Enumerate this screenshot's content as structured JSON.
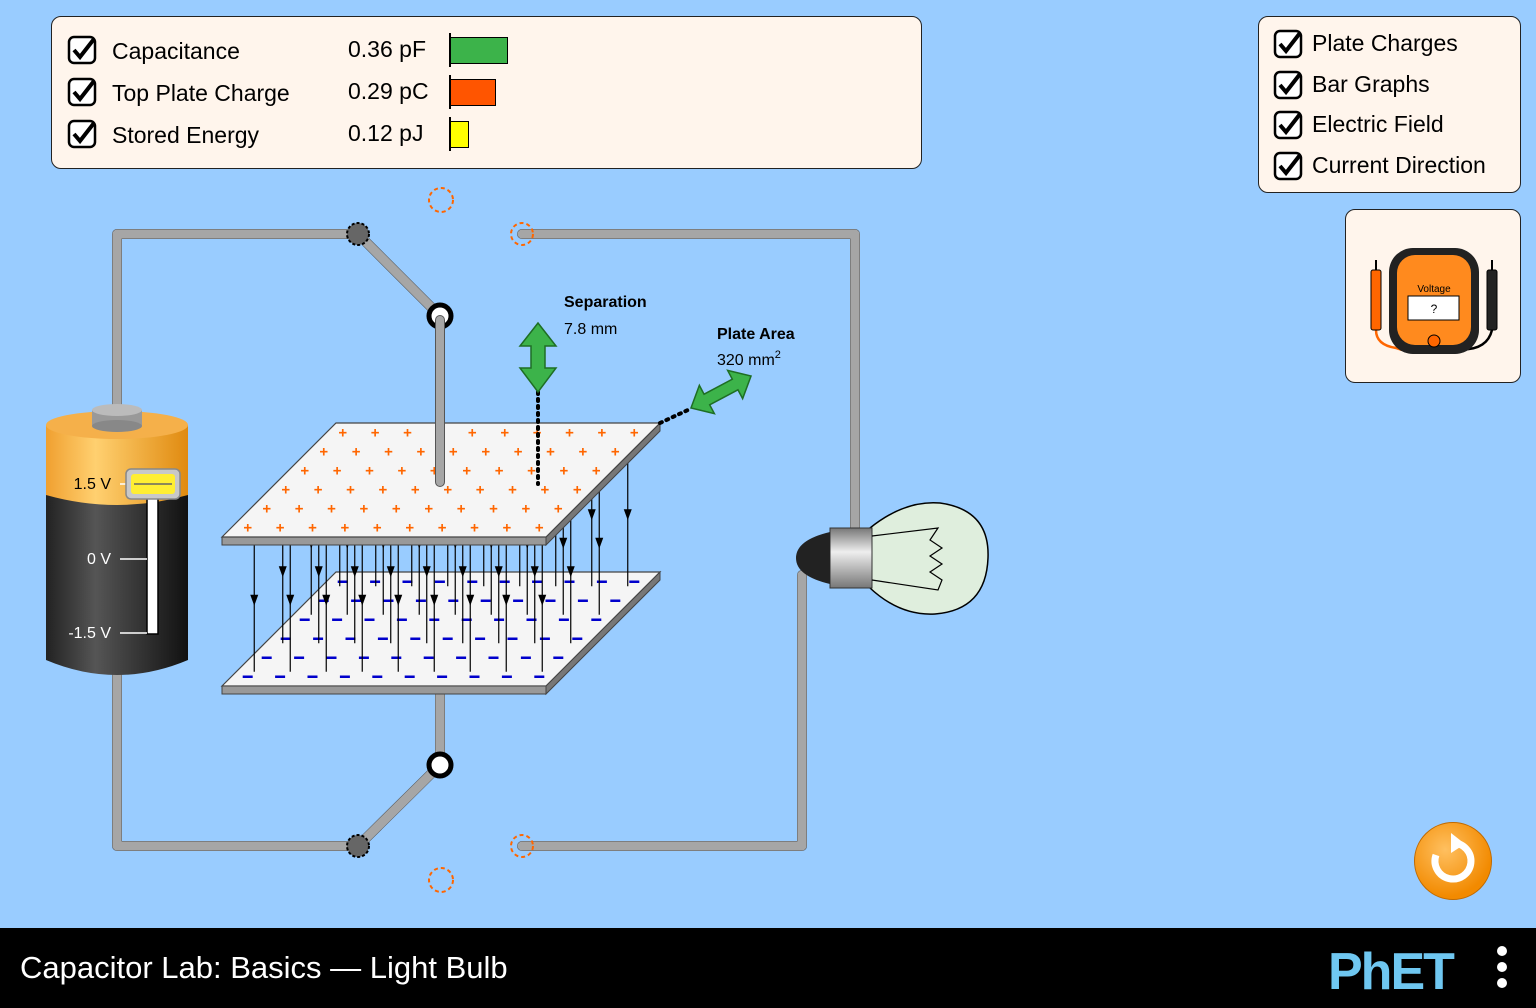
{
  "meters_panel": {
    "rows": [
      {
        "label": "Capacitance",
        "value": "0.36 pF",
        "checked": true,
        "color": "#3cb34a",
        "fraction": 0.36
      },
      {
        "label": "Top Plate Charge",
        "value": "0.29 pC",
        "checked": true,
        "color": "#ff5500",
        "fraction": 0.29
      },
      {
        "label": "Stored Energy",
        "value": "0.12 pJ",
        "checked": true,
        "color": "#ffff00",
        "fraction": 0.12
      }
    ]
  },
  "view_panel": {
    "options": [
      {
        "label": "Plate Charges",
        "checked": true
      },
      {
        "label": "Bar Graphs",
        "checked": true
      },
      {
        "label": "Electric Field",
        "checked": true
      },
      {
        "label": "Current Direction",
        "checked": true
      }
    ]
  },
  "voltmeter": {
    "title": "Voltage",
    "reading": "?",
    "icon": "voltmeter-icon"
  },
  "battery": {
    "top_label": "1.5 V",
    "mid_label": "0 V",
    "bottom_label": "-1.5 V",
    "voltage_fraction": 1.0
  },
  "separation": {
    "title": "Separation",
    "value": "7.8 mm"
  },
  "plate_area": {
    "title": "Plate Area",
    "value": "320 mm",
    "unit_superscript": "2"
  },
  "footer": {
    "title": "Capacitor Lab: Basics — Light Bulb",
    "logo": "PhET",
    "menu_icon": "kebab-menu-icon"
  },
  "reset_button": {
    "icon": "reset-icon"
  },
  "colors": {
    "background": "#99ccff",
    "panel": "#fff5ec",
    "positive_charge": "#ff6600",
    "negative_charge": "#0000cc",
    "drag_arrow": "#3cb34a",
    "wire": "#a6a6a6"
  }
}
